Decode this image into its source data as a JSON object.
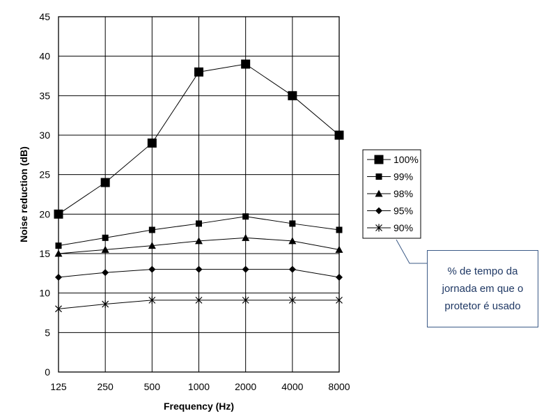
{
  "chart_data": {
    "type": "line",
    "title": "",
    "xlabel": "Frequency (Hz)",
    "ylabel": "Noise reduction (dB)",
    "categories": [
      "125",
      "250",
      "500",
      "1000",
      "2000",
      "4000",
      "8000"
    ],
    "ylim": [
      0,
      45
    ],
    "yticks": [
      0,
      5,
      10,
      15,
      20,
      25,
      30,
      35,
      40,
      45
    ],
    "grid": true,
    "legend_position": "right",
    "series": [
      {
        "name": "100%",
        "marker": "big-square",
        "values": [
          20,
          24,
          29,
          38,
          39,
          35,
          30
        ]
      },
      {
        "name": "99%",
        "marker": "square",
        "values": [
          16,
          17,
          18,
          18.8,
          19.7,
          18.8,
          18
        ]
      },
      {
        "name": "98%",
        "marker": "triangle",
        "values": [
          15,
          15.5,
          16,
          16.6,
          17,
          16.6,
          15.5
        ]
      },
      {
        "name": "95%",
        "marker": "diamond",
        "values": [
          12,
          12.6,
          13,
          13,
          13,
          13,
          12
        ]
      },
      {
        "name": "90%",
        "marker": "asterisk",
        "values": [
          8,
          8.6,
          9.1,
          9.1,
          9.1,
          9.1,
          9.1
        ]
      }
    ]
  },
  "annotation": {
    "text": "% de tempo da jornada em que o protetor é usado"
  }
}
